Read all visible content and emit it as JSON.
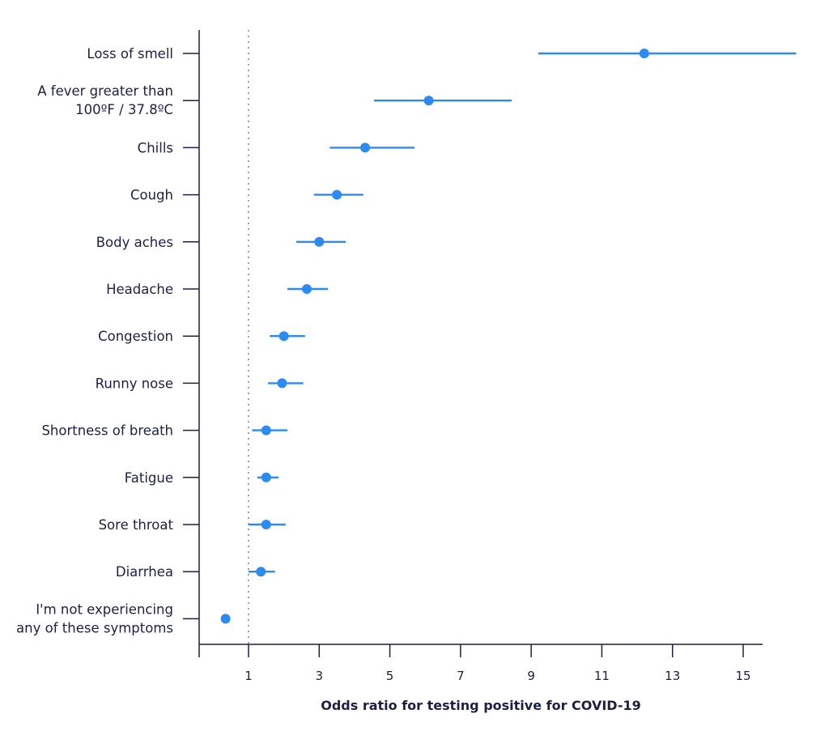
{
  "chart_data": {
    "type": "forest",
    "title": "",
    "xlabel": "Odds ratio for testing positive for COVID-19",
    "ylabel": "",
    "xlim": [
      -0.4,
      15.5
    ],
    "x_ticks": [
      1,
      3,
      5,
      7,
      9,
      11,
      13,
      15
    ],
    "reference_line": 1,
    "grid": false,
    "colors": {
      "marker": "#2a8bf2",
      "axis": "#1d1f48",
      "reference": "#9aa0ad"
    },
    "categories": [
      {
        "label": [
          "Loss of smell"
        ],
        "value": 12.2,
        "ci": [
          9.2,
          16.5
        ]
      },
      {
        "label": [
          "A fever greater than",
          "100ºF / 37.8ºC"
        ],
        "value": 6.1,
        "ci": [
          4.55,
          8.45
        ]
      },
      {
        "label": [
          "Chills"
        ],
        "value": 4.3,
        "ci": [
          3.3,
          5.7
        ]
      },
      {
        "label": [
          "Cough"
        ],
        "value": 3.5,
        "ci": [
          2.85,
          4.25
        ]
      },
      {
        "label": [
          "Body aches"
        ],
        "value": 3.0,
        "ci": [
          2.35,
          3.75
        ]
      },
      {
        "label": [
          "Headache"
        ],
        "value": 2.65,
        "ci": [
          2.1,
          3.25
        ]
      },
      {
        "label": [
          "Congestion"
        ],
        "value": 2.0,
        "ci": [
          1.6,
          2.6
        ]
      },
      {
        "label": [
          "Runny nose"
        ],
        "value": 1.95,
        "ci": [
          1.55,
          2.55
        ]
      },
      {
        "label": [
          "Shortness of breath"
        ],
        "value": 1.5,
        "ci": [
          1.1,
          2.1
        ]
      },
      {
        "label": [
          "Fatigue"
        ],
        "value": 1.5,
        "ci": [
          1.25,
          1.85
        ]
      },
      {
        "label": [
          "Sore throat"
        ],
        "value": 1.5,
        "ci": [
          1.0,
          2.05
        ]
      },
      {
        "label": [
          "Diarrhea"
        ],
        "value": 1.35,
        "ci": [
          1.0,
          1.75
        ]
      },
      {
        "label": [
          "I'm not experiencing",
          "any of these symptoms"
        ],
        "value": 0.35,
        "ci": null
      }
    ]
  }
}
